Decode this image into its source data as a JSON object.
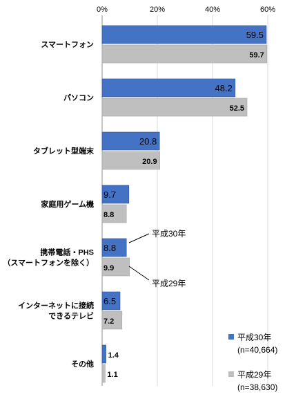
{
  "chart_data": {
    "type": "bar",
    "orientation": "horizontal",
    "xlim": [
      0,
      60
    ],
    "x_ticks": [
      "0%",
      "20%",
      "40%",
      "60%"
    ],
    "categories": [
      [
        "スマートフォン"
      ],
      [
        "パソコン"
      ],
      [
        "タブレット型端末"
      ],
      [
        "家庭用ゲーム機"
      ],
      [
        "携帯電話・PHS",
        "（スマートフォンを除く）"
      ],
      [
        "インターネットに接続",
        "できるテレビ"
      ],
      [
        "その他"
      ]
    ],
    "series": [
      {
        "name": "平成30年",
        "sample": "(n=40,664)",
        "color": "#4472c4",
        "values": [
          59.5,
          48.2,
          20.8,
          9.7,
          8.8,
          6.5,
          1.4
        ]
      },
      {
        "name": "平成29年",
        "sample": "(n=38,630)",
        "color": "#bfbfbf",
        "values": [
          59.7,
          52.5,
          20.9,
          8.8,
          9.9,
          7.2,
          1.1
        ]
      }
    ],
    "annotations": [
      "平成30年",
      "平成29年"
    ],
    "legend": "bottom-right"
  }
}
